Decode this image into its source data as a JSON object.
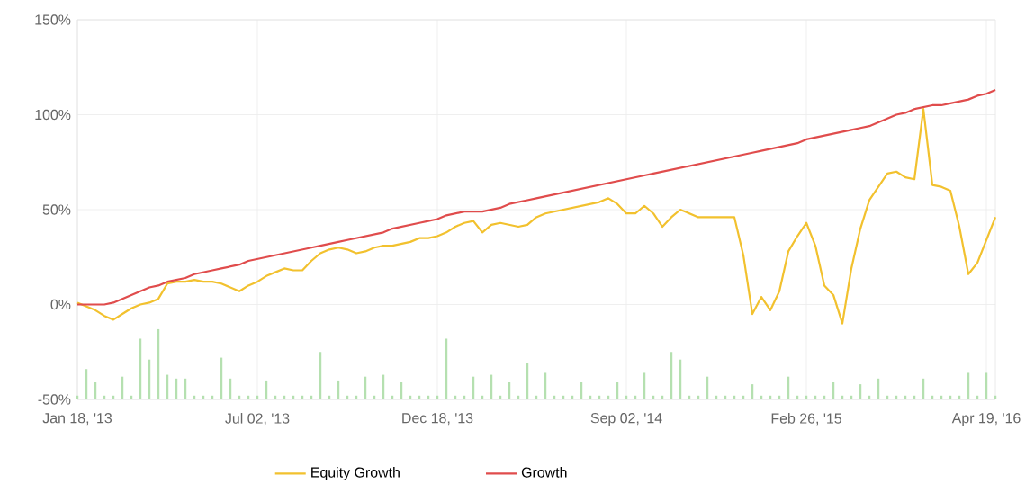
{
  "chart_data": {
    "type": "line",
    "ylim": [
      -50,
      150
    ],
    "categories": [
      "Jan 18, '13",
      null,
      null,
      null,
      null,
      null,
      null,
      null,
      null,
      null,
      null,
      null,
      null,
      null,
      null,
      null,
      null,
      null,
      null,
      null,
      "Jul 02, '13",
      null,
      null,
      null,
      null,
      null,
      null,
      null,
      null,
      null,
      null,
      null,
      null,
      null,
      null,
      null,
      null,
      null,
      null,
      null,
      "Dec 18, '13",
      null,
      null,
      null,
      null,
      null,
      null,
      null,
      null,
      null,
      null,
      null,
      null,
      null,
      null,
      null,
      null,
      null,
      null,
      null,
      null,
      "Sep 02, '14",
      null,
      null,
      null,
      null,
      null,
      null,
      null,
      null,
      null,
      null,
      null,
      null,
      null,
      null,
      null,
      null,
      null,
      null,
      null,
      "Feb 26, '15",
      null,
      null,
      null,
      null,
      null,
      null,
      null,
      null,
      null,
      null,
      null,
      null,
      null,
      null,
      null,
      null,
      null,
      null,
      null,
      "Apr 19, '16",
      null
    ],
    "yticks": [
      {
        "value": -50,
        "label": "-50%"
      },
      {
        "value": 0,
        "label": "0%"
      },
      {
        "value": 50,
        "label": "50%"
      },
      {
        "value": 100,
        "label": "100%"
      },
      {
        "value": 150,
        "label": "150%"
      }
    ],
    "grid": true,
    "legend": "bottom",
    "series": [
      {
        "name": "Equity Growth",
        "color": "#f2c12e",
        "values": [
          1,
          -1,
          -3,
          -6,
          -8,
          -5,
          -2,
          0,
          1,
          3,
          11,
          12,
          12,
          13,
          12,
          12,
          11,
          9,
          7,
          10,
          12,
          15,
          17,
          19,
          18,
          18,
          23,
          27,
          29,
          30,
          29,
          27,
          28,
          30,
          31,
          31,
          32,
          33,
          35,
          35,
          36,
          38,
          41,
          43,
          44,
          38,
          42,
          43,
          42,
          41,
          42,
          46,
          48,
          49,
          50,
          51,
          52,
          53,
          54,
          56,
          53,
          48,
          48,
          52,
          48,
          41,
          46,
          50,
          48,
          46,
          46,
          46,
          46,
          46,
          26,
          -5,
          4,
          -3,
          7,
          28,
          36,
          43,
          31,
          10,
          5,
          -10,
          19,
          40,
          55,
          62,
          69,
          70,
          67,
          66,
          103,
          63,
          62,
          60,
          41,
          16,
          22,
          34,
          46
        ]
      },
      {
        "name": "Growth",
        "color": "#e04c4c",
        "values": [
          0,
          0,
          0,
          0,
          1,
          3,
          5,
          7,
          9,
          10,
          12,
          13,
          14,
          16,
          17,
          18,
          19,
          20,
          21,
          23,
          24,
          25,
          26,
          27,
          28,
          29,
          30,
          31,
          32,
          33,
          34,
          35,
          36,
          37,
          38,
          40,
          41,
          42,
          43,
          44,
          45,
          47,
          48,
          49,
          49,
          49,
          50,
          51,
          53,
          54,
          55,
          56,
          57,
          58,
          59,
          60,
          61,
          62,
          63,
          64,
          65,
          66,
          67,
          68,
          69,
          70,
          71,
          72,
          73,
          74,
          75,
          76,
          77,
          78,
          79,
          80,
          81,
          82,
          83,
          84,
          85,
          87,
          88,
          89,
          90,
          91,
          92,
          93,
          94,
          96,
          98,
          100,
          101,
          103,
          104,
          105,
          105,
          106,
          107,
          108,
          110,
          111,
          113
        ]
      },
      {
        "type": "bar",
        "color": "#b5e0b0",
        "values": [
          2,
          16,
          9,
          2,
          2,
          12,
          2,
          32,
          21,
          37,
          13,
          11,
          11,
          2,
          2,
          2,
          22,
          11,
          2,
          2,
          2,
          10,
          2,
          2,
          2,
          2,
          2,
          25,
          2,
          10,
          2,
          2,
          12,
          2,
          13,
          2,
          9,
          2,
          2,
          2,
          2,
          32,
          2,
          2,
          12,
          2,
          13,
          2,
          9,
          2,
          19,
          2,
          14,
          2,
          2,
          2,
          9,
          2,
          2,
          2,
          9,
          2,
          2,
          14,
          2,
          2,
          25,
          21,
          2,
          2,
          12,
          2,
          2,
          2,
          2,
          8,
          2,
          2,
          2,
          12,
          2,
          2,
          2,
          2,
          9,
          2,
          2,
          8,
          2,
          11,
          2,
          2,
          2,
          2,
          11,
          2,
          2,
          2,
          2,
          14,
          2,
          14,
          2
        ],
        "base": [
          -50,
          -50,
          -50,
          -50,
          -50,
          -50,
          -50,
          -50,
          -50,
          -50,
          -50,
          -50,
          -50,
          -50,
          -50,
          -50,
          -50,
          -50,
          -50,
          -50,
          -50,
          -50,
          -50,
          -50,
          -50,
          -50,
          -50,
          -50,
          -50,
          -50,
          -50,
          -50,
          -50,
          -50,
          -50,
          -50,
          -50,
          -50,
          -50,
          -50,
          -50,
          -50,
          -50,
          -50,
          -50,
          -50,
          -50,
          -50,
          -50,
          -50,
          -50,
          -50,
          -50,
          -50,
          -50,
          -50,
          -50,
          -50,
          -50,
          -50,
          -50,
          -50,
          -50,
          -50,
          -50,
          -50,
          -50,
          -50,
          -50,
          -50,
          -50,
          -50,
          -50,
          -50,
          -50,
          -50,
          -50,
          -50,
          -50,
          -50,
          -50,
          -50,
          -50,
          -50,
          -50,
          -50,
          -50,
          -50,
          -50,
          -50,
          -50,
          -50,
          -50,
          -50,
          -50,
          -50,
          -50,
          -50,
          -50,
          -50,
          -50,
          -50,
          -50
        ]
      }
    ]
  }
}
